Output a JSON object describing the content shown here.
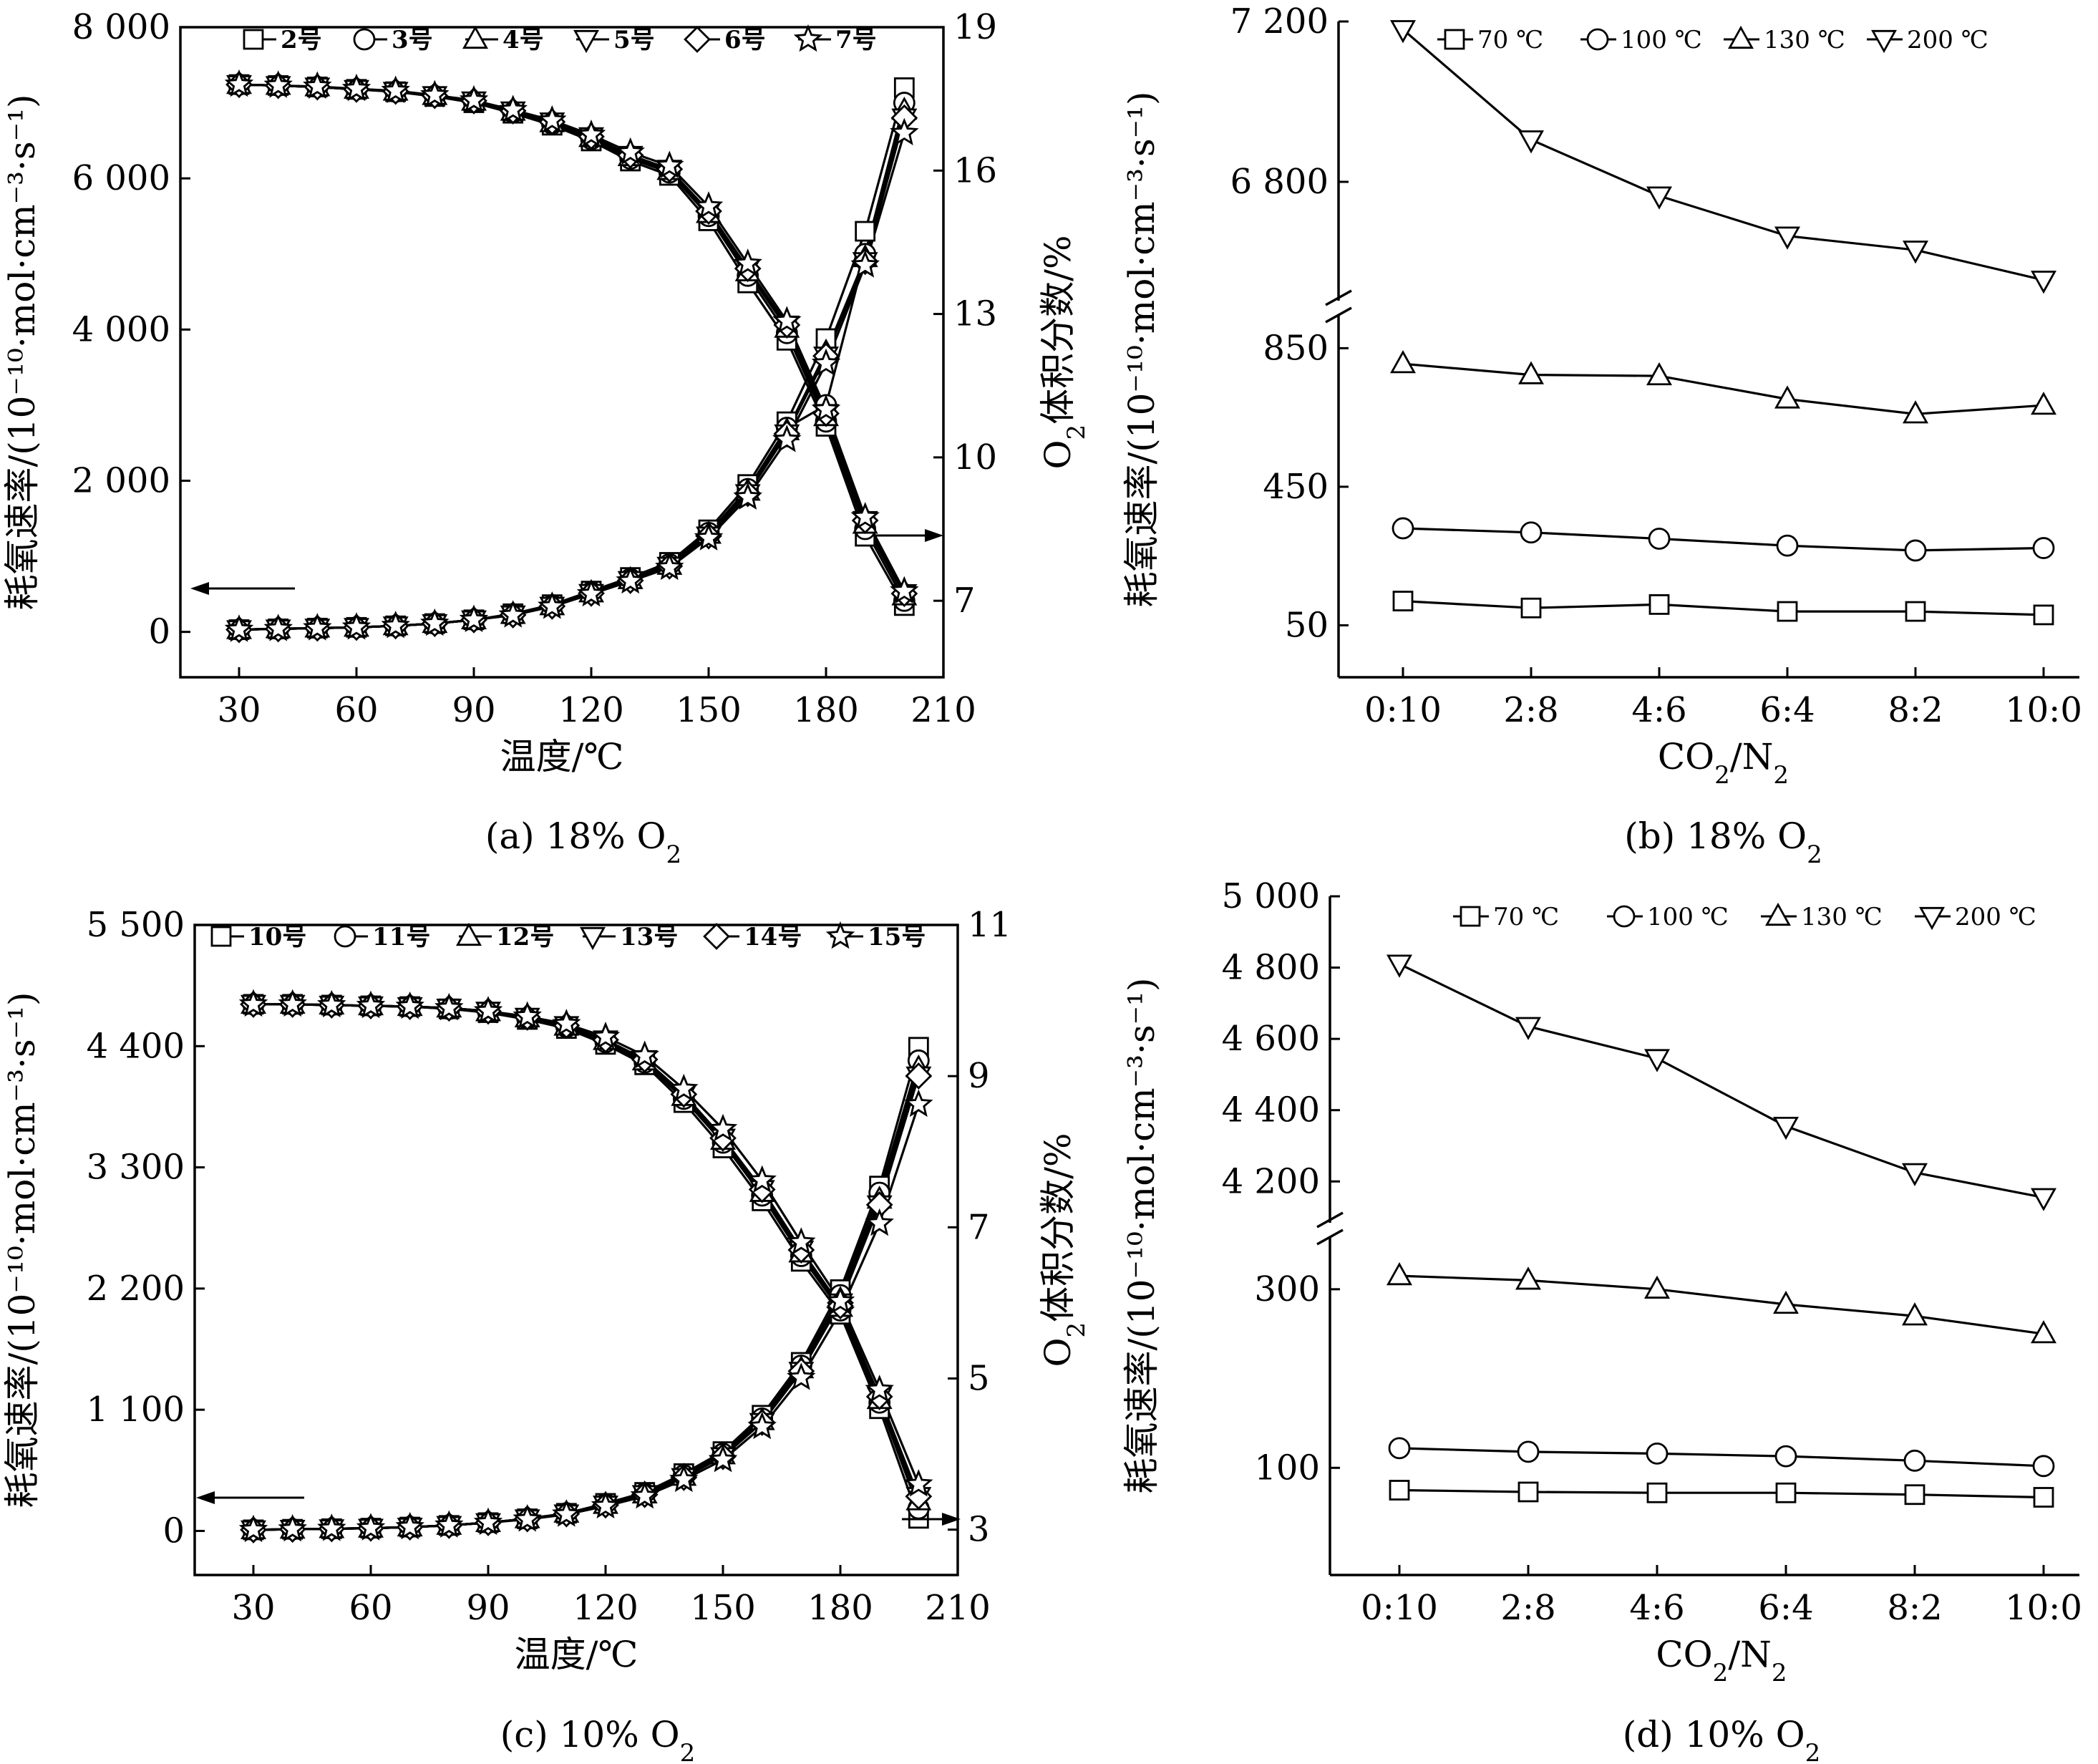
{
  "panels": [
    {
      "id": "a",
      "caption_main": "(a) 18% O",
      "caption_sub": "2",
      "xlabel": "温度/℃",
      "ylabel_left": "耗氧速率/(10⁻¹⁰·mol·cm⁻³·s⁻¹)",
      "ylabel_right_main": "O",
      "ylabel_right_sub": "2",
      "ylabel_right_rest": "体积分数/%",
      "chart_data": {
        "type": "line",
        "x": [
          30,
          40,
          50,
          60,
          70,
          80,
          90,
          100,
          110,
          120,
          130,
          140,
          150,
          160,
          170,
          180,
          190,
          200
        ],
        "xlim": [
          15,
          210
        ],
        "xticks": [
          30,
          60,
          90,
          120,
          150,
          180,
          210
        ],
        "ylim_left": [
          -600,
          8000
        ],
        "yticks_left": [
          0,
          2000,
          4000,
          6000,
          8000
        ],
        "ytick_labels_left": [
          "0",
          "2 000",
          "4 000",
          "6 000",
          "8 000"
        ],
        "ylim_right": [
          5.4,
          19
        ],
        "yticks_right": [
          7,
          10,
          13,
          16,
          19
        ],
        "ytick_labels_right": [
          "7",
          "10",
          "13",
          "16",
          "19"
        ],
        "legend": [
          "2号",
          "3号",
          "4号",
          "5号",
          "6号",
          "7号"
        ],
        "markers": [
          "square",
          "circle",
          "triangle-up",
          "triangle-down",
          "diamond",
          "star"
        ],
        "rate_series": [
          [
            30,
            40,
            50,
            60,
            80,
            110,
            160,
            240,
            360,
            540,
            720,
            920,
            1350,
            1950,
            2780,
            3880,
            5300,
            7200
          ],
          [
            30,
            40,
            50,
            60,
            80,
            110,
            160,
            235,
            350,
            525,
            700,
            895,
            1310,
            1890,
            2700,
            3000,
            5000,
            7000
          ],
          [
            30,
            40,
            50,
            60,
            80,
            110,
            160,
            230,
            345,
            515,
            690,
            880,
            1290,
            1860,
            2660,
            3700,
            4950,
            6900
          ],
          [
            30,
            40,
            50,
            60,
            80,
            110,
            160,
            225,
            340,
            510,
            680,
            870,
            1270,
            1830,
            2620,
            3650,
            4900,
            6800
          ],
          [
            30,
            40,
            50,
            60,
            80,
            110,
            160,
            225,
            340,
            510,
            680,
            870,
            1270,
            1830,
            2620,
            3650,
            4900,
            6800
          ],
          [
            30,
            40,
            50,
            60,
            80,
            110,
            160,
            220,
            335,
            500,
            670,
            850,
            1240,
            1780,
            2540,
            3550,
            4850,
            6600
          ]
        ],
        "o2_series": [
          [
            17.8,
            17.78,
            17.75,
            17.7,
            17.65,
            17.55,
            17.42,
            17.2,
            16.95,
            16.62,
            16.2,
            15.9,
            14.95,
            13.65,
            12.45,
            10.65,
            8.35,
            6.9
          ],
          [
            17.8,
            17.78,
            17.75,
            17.7,
            17.65,
            17.56,
            17.44,
            17.22,
            16.98,
            16.66,
            16.25,
            15.96,
            15.05,
            13.8,
            12.6,
            10.75,
            8.5,
            7.0
          ],
          [
            17.8,
            17.78,
            17.75,
            17.7,
            17.66,
            17.57,
            17.45,
            17.24,
            17.0,
            16.69,
            16.29,
            16.0,
            15.1,
            13.88,
            12.7,
            10.85,
            8.6,
            7.1
          ],
          [
            17.8,
            17.78,
            17.75,
            17.7,
            17.66,
            17.57,
            17.46,
            17.25,
            17.02,
            16.71,
            16.32,
            16.03,
            15.15,
            13.95,
            12.77,
            10.92,
            8.68,
            7.15
          ],
          [
            17.8,
            17.78,
            17.75,
            17.7,
            17.66,
            17.57,
            17.46,
            17.25,
            17.02,
            16.71,
            16.32,
            16.03,
            15.15,
            13.95,
            12.77,
            10.92,
            8.68,
            7.15
          ],
          [
            17.8,
            17.78,
            17.76,
            17.71,
            17.67,
            17.58,
            17.47,
            17.27,
            17.05,
            16.75,
            16.38,
            16.1,
            15.25,
            14.05,
            12.85,
            11.0,
            8.75,
            7.2
          ]
        ],
        "arrows": [
          "left",
          "right"
        ]
      }
    },
    {
      "id": "b",
      "caption_main": "(b) 18% O",
      "caption_sub": "2",
      "xlabel_main": "CO",
      "xlabel_sub1": "2",
      "xlabel_mid": "/N",
      "xlabel_sub2": "2",
      "ylabel_left": "耗氧速率/(10⁻¹⁰·mol·cm⁻³·s⁻¹)",
      "chart_data": {
        "type": "line",
        "categories": [
          "0:10",
          "2:8",
          "4:6",
          "6:4",
          "8:2",
          "10:0"
        ],
        "broken_axis": true,
        "lower_ylim": [
          -100,
          950
        ],
        "lower_yticks": [
          50,
          450,
          850
        ],
        "lower_ytick_labels": [
          "50",
          "450",
          "850"
        ],
        "upper_ylim": [
          6500,
          7200
        ],
        "upper_yticks": [
          6800,
          7200
        ],
        "upper_ytick_labels": [
          "6 800",
          "7 200"
        ],
        "legend": [
          "70 ℃",
          "100 ℃",
          "130 ℃",
          "200 ℃"
        ],
        "markers": [
          "square",
          "circle",
          "triangle-up",
          "triangle-down"
        ],
        "series": [
          {
            "name": "70 ℃",
            "values": [
              120,
              100,
              110,
              90,
              90,
              80
            ]
          },
          {
            "name": "100 ℃",
            "values": [
              330,
              318,
              300,
              280,
              266,
              273
            ]
          },
          {
            "name": "130 ℃",
            "values": [
              805,
              773,
              770,
              703,
              660,
              685
            ]
          },
          {
            "name": "200 ℃",
            "values": [
              7180,
              6905,
              6765,
              6665,
              6630,
              6555
            ]
          }
        ]
      }
    },
    {
      "id": "c",
      "caption_main": "(c) 10% O",
      "caption_sub": "2",
      "xlabel": "温度/℃",
      "ylabel_left": "耗氧速率/(10⁻¹⁰·mol·cm⁻³·s⁻¹)",
      "ylabel_right_main": "O",
      "ylabel_right_sub": "2",
      "ylabel_right_rest": "体积分数/%",
      "chart_data": {
        "type": "line",
        "x": [
          30,
          40,
          50,
          60,
          70,
          80,
          90,
          100,
          110,
          120,
          130,
          140,
          150,
          160,
          170,
          180,
          190,
          200
        ],
        "xlim": [
          15,
          210
        ],
        "xticks": [
          30,
          60,
          90,
          120,
          150,
          180,
          210
        ],
        "ylim_left": [
          -400,
          5500
        ],
        "yticks_left": [
          0,
          1100,
          2200,
          3300,
          4400,
          5500
        ],
        "ytick_labels_left": [
          "0",
          "1 100",
          "2 200",
          "3 300",
          "4 400",
          "5 500"
        ],
        "ylim_right": [
          2.4,
          11
        ],
        "yticks_right": [
          3,
          5,
          7,
          9,
          11
        ],
        "ytick_labels_right": [
          "3",
          "5",
          "7",
          "9",
          "11"
        ],
        "legend": [
          "10号",
          "11号",
          "12号",
          "13号",
          "14号",
          "15号"
        ],
        "markers": [
          "square",
          "circle",
          "triangle-up",
          "triangle-down",
          "diamond",
          "star"
        ],
        "rate_series": [
          [
            10,
            15,
            20,
            25,
            35,
            50,
            75,
            110,
            160,
            250,
            350,
            520,
            720,
            1050,
            1530,
            2190,
            3130,
            4390
          ],
          [
            10,
            15,
            20,
            25,
            35,
            50,
            75,
            110,
            160,
            245,
            340,
            505,
            700,
            1020,
            1500,
            2140,
            3070,
            4270
          ],
          [
            10,
            15,
            20,
            25,
            35,
            50,
            75,
            110,
            160,
            240,
            335,
            495,
            690,
            1000,
            1470,
            2100,
            3010,
            4200
          ],
          [
            10,
            15,
            20,
            25,
            35,
            50,
            75,
            110,
            155,
            235,
            330,
            485,
            675,
            985,
            1450,
            2070,
            2960,
            4130
          ],
          [
            10,
            15,
            20,
            25,
            35,
            50,
            75,
            110,
            155,
            235,
            330,
            485,
            675,
            985,
            1450,
            2070,
            2960,
            4130
          ],
          [
            10,
            15,
            20,
            25,
            35,
            50,
            75,
            105,
            150,
            225,
            315,
            465,
            645,
            945,
            1390,
            1990,
            2790,
            3870
          ]
        ],
        "o2_series": [
          [
            9.95,
            9.95,
            9.94,
            9.93,
            9.92,
            9.89,
            9.84,
            9.75,
            9.63,
            9.42,
            9.15,
            8.65,
            8.05,
            7.35,
            6.55,
            5.85,
            4.6,
            3.15
          ],
          [
            9.95,
            9.95,
            9.94,
            9.93,
            9.92,
            9.89,
            9.85,
            9.76,
            9.65,
            9.45,
            9.18,
            8.7,
            8.12,
            7.42,
            6.62,
            5.9,
            4.68,
            3.28
          ],
          [
            9.95,
            9.95,
            9.94,
            9.93,
            9.92,
            9.9,
            9.85,
            9.77,
            9.66,
            9.47,
            9.2,
            8.73,
            8.15,
            7.46,
            6.66,
            5.94,
            4.72,
            3.38
          ],
          [
            9.95,
            9.95,
            9.94,
            9.93,
            9.92,
            9.9,
            9.86,
            9.78,
            9.67,
            9.48,
            9.22,
            8.76,
            8.18,
            7.5,
            6.7,
            5.96,
            4.76,
            3.44
          ],
          [
            9.95,
            9.95,
            9.94,
            9.93,
            9.92,
            9.9,
            9.86,
            9.78,
            9.67,
            9.48,
            9.22,
            8.76,
            8.18,
            7.5,
            6.7,
            5.96,
            4.76,
            3.44
          ],
          [
            9.95,
            9.95,
            9.94,
            9.93,
            9.92,
            9.9,
            9.86,
            9.79,
            9.69,
            9.52,
            9.27,
            8.83,
            8.3,
            7.62,
            6.8,
            6.02,
            4.85,
            3.6
          ]
        ],
        "arrows": [
          "left",
          "right"
        ]
      }
    },
    {
      "id": "d",
      "caption_main": "(d) 10% O",
      "caption_sub": "2",
      "xlabel_main": "CO",
      "xlabel_sub1": "2",
      "xlabel_mid": "/N",
      "xlabel_sub2": "2",
      "ylabel_left": "耗氧速率/(10⁻¹⁰·mol·cm⁻³·s⁻¹)",
      "chart_data": {
        "type": "line",
        "categories": [
          "0:10",
          "2:8",
          "4:6",
          "6:4",
          "8:2",
          "10:0"
        ],
        "broken_axis": true,
        "lower_ylim": [
          -20,
          360
        ],
        "lower_yticks": [
          100,
          300
        ],
        "lower_ytick_labels": [
          "100",
          "300"
        ],
        "upper_ylim": [
          4080,
          5000
        ],
        "upper_yticks": [
          4200,
          4400,
          4600,
          4800,
          5000
        ],
        "upper_ytick_labels": [
          "4 200",
          "4 400",
          "4 600",
          "4 800",
          "5 000"
        ],
        "legend": [
          "70 ℃",
          "100 ℃",
          "130 ℃",
          "200 ℃"
        ],
        "markers": [
          "square",
          "circle",
          "triangle-up",
          "triangle-down"
        ],
        "series": [
          {
            "name": "70 ℃",
            "values": [
              75,
              73,
              72,
              72,
              70,
              67
            ]
          },
          {
            "name": "100 ℃",
            "values": [
              122,
              118,
              116,
              113,
              108,
              102
            ]
          },
          {
            "name": "130 ℃",
            "values": [
              315,
              310,
              300,
              283,
              270,
              250
            ]
          },
          {
            "name": "200 ℃",
            "values": [
              4810,
              4635,
              4545,
              4355,
              4225,
              4155
            ]
          }
        ]
      }
    }
  ]
}
